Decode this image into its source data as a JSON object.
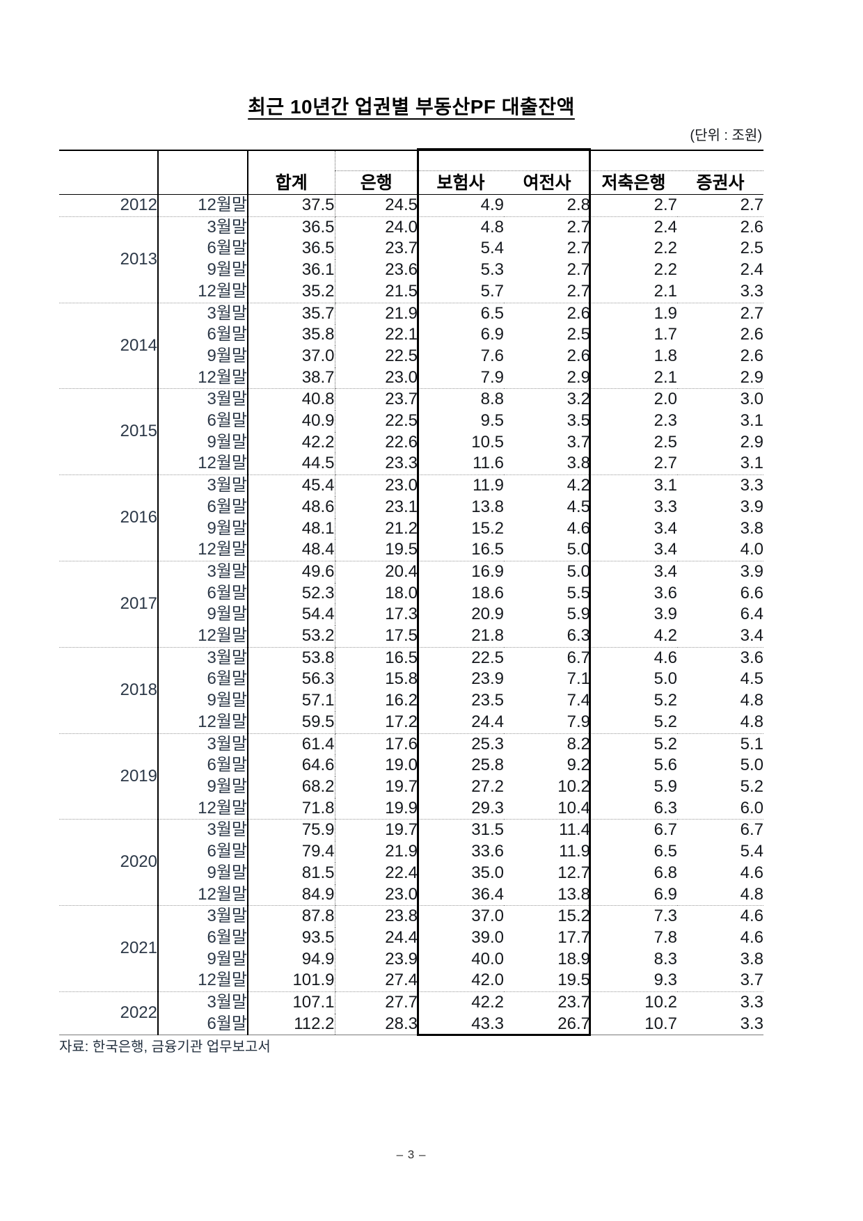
{
  "page": {
    "title": "최근 10년간 업권별 부동산PF 대출잔액",
    "unit_label": "(단위 : 조원)",
    "source_note": "자료: 한국은행, 금융기관 업무보고서",
    "page_number": "– 3 –"
  },
  "table": {
    "column_headers": [
      "합계",
      "은행",
      "보험사",
      "여전사",
      "저축은행",
      "증권사"
    ],
    "highlighted_columns": [
      "보험사",
      "여전사"
    ],
    "groups": [
      {
        "year": "2012",
        "rows": [
          {
            "month": "12월말",
            "values": [
              "37.5",
              "24.5",
              "4.9",
              "2.8",
              "2.7",
              "2.7"
            ]
          }
        ]
      },
      {
        "year": "2013",
        "rows": [
          {
            "month": "3월말",
            "values": [
              "36.5",
              "24.0",
              "4.8",
              "2.7",
              "2.4",
              "2.6"
            ]
          },
          {
            "month": "6월말",
            "values": [
              "36.5",
              "23.7",
              "5.4",
              "2.7",
              "2.2",
              "2.5"
            ]
          },
          {
            "month": "9월말",
            "values": [
              "36.1",
              "23.6",
              "5.3",
              "2.7",
              "2.2",
              "2.4"
            ]
          },
          {
            "month": "12월말",
            "values": [
              "35.2",
              "21.5",
              "5.7",
              "2.7",
              "2.1",
              "3.3"
            ]
          }
        ]
      },
      {
        "year": "2014",
        "rows": [
          {
            "month": "3월말",
            "values": [
              "35.7",
              "21.9",
              "6.5",
              "2.6",
              "1.9",
              "2.7"
            ]
          },
          {
            "month": "6월말",
            "values": [
              "35.8",
              "22.1",
              "6.9",
              "2.5",
              "1.7",
              "2.6"
            ]
          },
          {
            "month": "9월말",
            "values": [
              "37.0",
              "22.5",
              "7.6",
              "2.6",
              "1.8",
              "2.6"
            ]
          },
          {
            "month": "12월말",
            "values": [
              "38.7",
              "23.0",
              "7.9",
              "2.9",
              "2.1",
              "2.9"
            ]
          }
        ]
      },
      {
        "year": "2015",
        "rows": [
          {
            "month": "3월말",
            "values": [
              "40.8",
              "23.7",
              "8.8",
              "3.2",
              "2.0",
              "3.0"
            ]
          },
          {
            "month": "6월말",
            "values": [
              "40.9",
              "22.5",
              "9.5",
              "3.5",
              "2.3",
              "3.1"
            ]
          },
          {
            "month": "9월말",
            "values": [
              "42.2",
              "22.6",
              "10.5",
              "3.7",
              "2.5",
              "2.9"
            ]
          },
          {
            "month": "12월말",
            "values": [
              "44.5",
              "23.3",
              "11.6",
              "3.8",
              "2.7",
              "3.1"
            ]
          }
        ]
      },
      {
        "year": "2016",
        "rows": [
          {
            "month": "3월말",
            "values": [
              "45.4",
              "23.0",
              "11.9",
              "4.2",
              "3.1",
              "3.3"
            ]
          },
          {
            "month": "6월말",
            "values": [
              "48.6",
              "23.1",
              "13.8",
              "4.5",
              "3.3",
              "3.9"
            ]
          },
          {
            "month": "9월말",
            "values": [
              "48.1",
              "21.2",
              "15.2",
              "4.6",
              "3.4",
              "3.8"
            ]
          },
          {
            "month": "12월말",
            "values": [
              "48.4",
              "19.5",
              "16.5",
              "5.0",
              "3.4",
              "4.0"
            ]
          }
        ]
      },
      {
        "year": "2017",
        "rows": [
          {
            "month": "3월말",
            "values": [
              "49.6",
              "20.4",
              "16.9",
              "5.0",
              "3.4",
              "3.9"
            ]
          },
          {
            "month": "6월말",
            "values": [
              "52.3",
              "18.0",
              "18.6",
              "5.5",
              "3.6",
              "6.6"
            ]
          },
          {
            "month": "9월말",
            "values": [
              "54.4",
              "17.3",
              "20.9",
              "5.9",
              "3.9",
              "6.4"
            ]
          },
          {
            "month": "12월말",
            "values": [
              "53.2",
              "17.5",
              "21.8",
              "6.3",
              "4.2",
              "3.4"
            ]
          }
        ]
      },
      {
        "year": "2018",
        "rows": [
          {
            "month": "3월말",
            "values": [
              "53.8",
              "16.5",
              "22.5",
              "6.7",
              "4.6",
              "3.6"
            ]
          },
          {
            "month": "6월말",
            "values": [
              "56.3",
              "15.8",
              "23.9",
              "7.1",
              "5.0",
              "4.5"
            ]
          },
          {
            "month": "9월말",
            "values": [
              "57.1",
              "16.2",
              "23.5",
              "7.4",
              "5.2",
              "4.8"
            ]
          },
          {
            "month": "12월말",
            "values": [
              "59.5",
              "17.2",
              "24.4",
              "7.9",
              "5.2",
              "4.8"
            ]
          }
        ]
      },
      {
        "year": "2019",
        "rows": [
          {
            "month": "3월말",
            "values": [
              "61.4",
              "17.6",
              "25.3",
              "8.2",
              "5.2",
              "5.1"
            ]
          },
          {
            "month": "6월말",
            "values": [
              "64.6",
              "19.0",
              "25.8",
              "9.2",
              "5.6",
              "5.0"
            ]
          },
          {
            "month": "9월말",
            "values": [
              "68.2",
              "19.7",
              "27.2",
              "10.2",
              "5.9",
              "5.2"
            ]
          },
          {
            "month": "12월말",
            "values": [
              "71.8",
              "19.9",
              "29.3",
              "10.4",
              "6.3",
              "6.0"
            ]
          }
        ]
      },
      {
        "year": "2020",
        "rows": [
          {
            "month": "3월말",
            "values": [
              "75.9",
              "19.7",
              "31.5",
              "11.4",
              "6.7",
              "6.7"
            ]
          },
          {
            "month": "6월말",
            "values": [
              "79.4",
              "21.9",
              "33.6",
              "11.9",
              "6.5",
              "5.4"
            ]
          },
          {
            "month": "9월말",
            "values": [
              "81.5",
              "22.4",
              "35.0",
              "12.7",
              "6.8",
              "4.6"
            ]
          },
          {
            "month": "12월말",
            "values": [
              "84.9",
              "23.0",
              "36.4",
              "13.8",
              "6.9",
              "4.8"
            ]
          }
        ]
      },
      {
        "year": "2021",
        "rows": [
          {
            "month": "3월말",
            "values": [
              "87.8",
              "23.8",
              "37.0",
              "15.2",
              "7.3",
              "4.6"
            ]
          },
          {
            "month": "6월말",
            "values": [
              "93.5",
              "24.4",
              "39.0",
              "17.7",
              "7.8",
              "4.6"
            ]
          },
          {
            "month": "9월말",
            "values": [
              "94.9",
              "23.9",
              "40.0",
              "18.9",
              "8.3",
              "3.8"
            ]
          },
          {
            "month": "12월말",
            "values": [
              "101.9",
              "27.4",
              "42.0",
              "19.5",
              "9.3",
              "3.7"
            ]
          }
        ]
      },
      {
        "year": "2022",
        "rows": [
          {
            "month": "3월말",
            "values": [
              "107.1",
              "27.7",
              "42.2",
              "23.7",
              "10.2",
              "3.3"
            ]
          },
          {
            "month": "6월말",
            "values": [
              "112.2",
              "28.3",
              "43.3",
              "26.7",
              "10.7",
              "3.3"
            ]
          }
        ]
      }
    ]
  }
}
